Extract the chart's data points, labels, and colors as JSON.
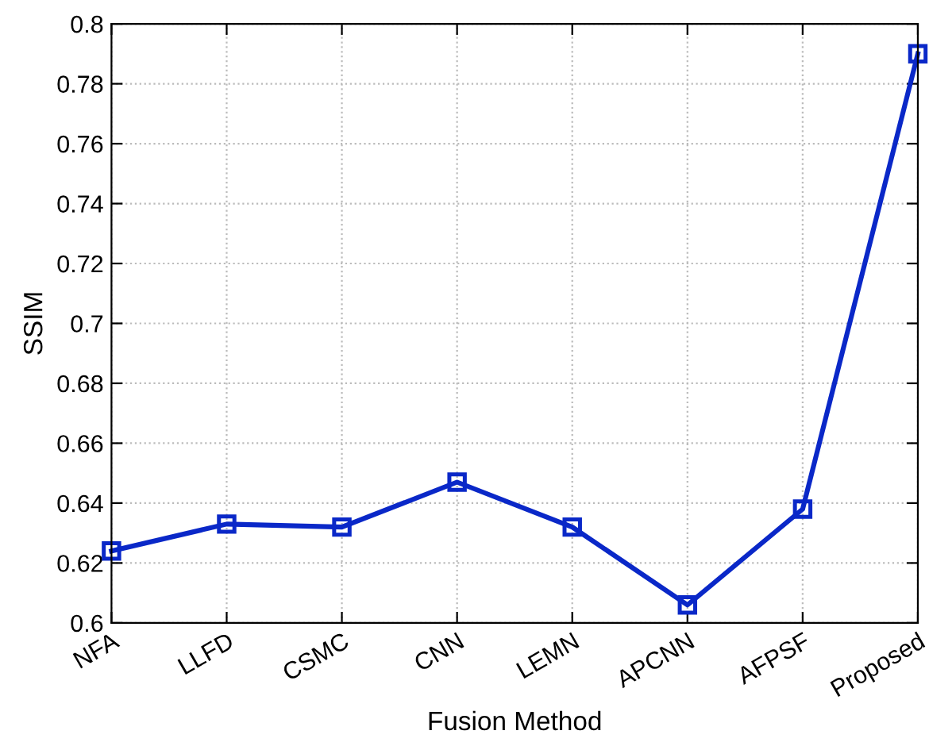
{
  "chart_data": {
    "type": "line",
    "xlabel": "Fusion Method",
    "ylabel": "SSIM",
    "categories": [
      "NFA",
      "LLFD",
      "CSMC",
      "CNN",
      "LEMN",
      "APCNN",
      "AFPSF",
      "Proposed"
    ],
    "series": [
      {
        "color": "#0a28c8",
        "values": [
          0.624,
          0.633,
          0.632,
          0.647,
          0.632,
          0.606,
          0.638,
          0.79
        ]
      }
    ],
    "ylim": [
      0.6,
      0.8
    ],
    "yticks": [
      0.6,
      0.62,
      0.64,
      0.66,
      0.68,
      0.7,
      0.72,
      0.74,
      0.76,
      0.78,
      0.8
    ],
    "grid": true,
    "marker": "square",
    "line_style": "solid"
  }
}
